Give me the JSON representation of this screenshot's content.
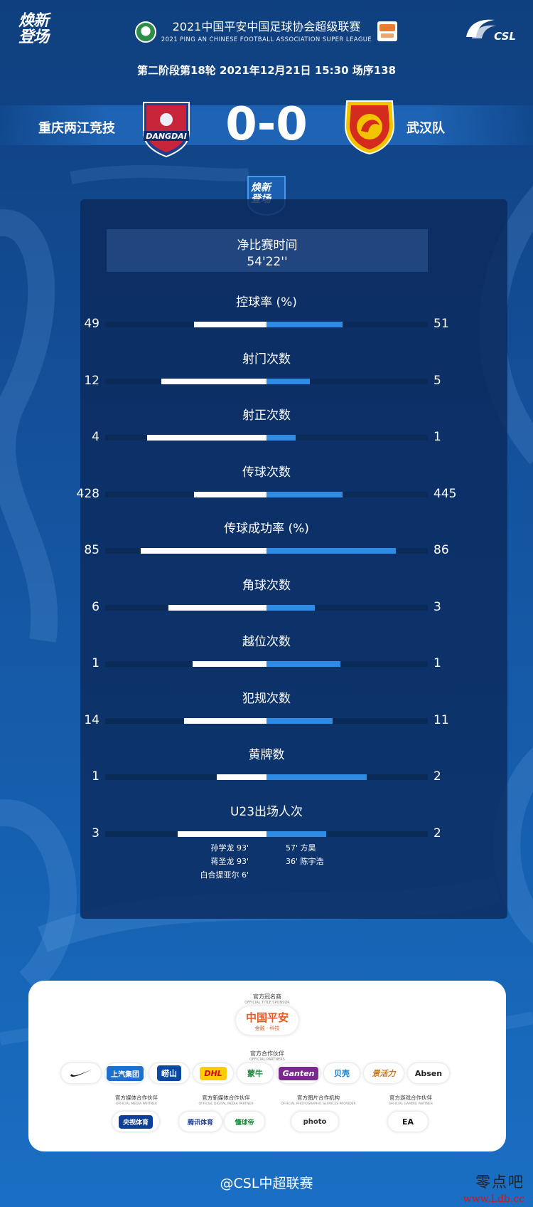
{
  "header": {
    "brand_line1": "焕新",
    "brand_line2": "登场",
    "league_title_cn": "2021中国平安中国足球协会超级联赛",
    "league_title_en": "2021 PING AN CHINESE FOOTBALL ASSOCIATION SUPER LEAGUE",
    "csl_logo_text": "CSL"
  },
  "match": {
    "round_info": "第二阶段第18轮  2021年12月21日 15:30 场序138",
    "home_team": "重庆两江竞技",
    "away_team": "武汉队",
    "score": "0-0",
    "home_crest_text": "DANGDAI",
    "center_badge_line1": "焕新",
    "center_badge_line2": "登场"
  },
  "net_time": {
    "label": "净比赛时间",
    "value": "54'22''"
  },
  "stats": [
    {
      "label": "控球率 (%)",
      "home": "49",
      "away": "51",
      "home_num": 49,
      "away_num": 51
    },
    {
      "label": "射门次数",
      "home": "12",
      "away": "5",
      "home_num": 12,
      "away_num": 5
    },
    {
      "label": "射正次数",
      "home": "4",
      "away": "1",
      "home_num": 4,
      "away_num": 1
    },
    {
      "label": "传球次数",
      "home": "428",
      "away": "445",
      "home_num": 428,
      "away_num": 445
    },
    {
      "label": "传球成功率 (%)",
      "home": "85",
      "away": "86",
      "home_num": 85,
      "away_num": 86
    },
    {
      "label": "角球次数",
      "home": "6",
      "away": "3",
      "home_num": 6,
      "away_num": 3
    },
    {
      "label": "越位次数",
      "home": "1",
      "away": "1",
      "home_num": 1,
      "away_num": 1
    },
    {
      "label": "犯规次数",
      "home": "14",
      "away": "11",
      "home_num": 14,
      "away_num": 11
    },
    {
      "label": "黄牌数",
      "home": "1",
      "away": "2",
      "home_num": 1,
      "away_num": 2
    },
    {
      "label": "U23出场人次",
      "home": "3",
      "away": "2",
      "home_num": 3,
      "away_num": 2
    }
  ],
  "stat_bar_fill": [
    {
      "home": 0.45,
      "away": 0.47
    },
    {
      "home": 0.65,
      "away": 0.27
    },
    {
      "home": 0.74,
      "away": 0.18
    },
    {
      "home": 0.45,
      "away": 0.47
    },
    {
      "home": 0.78,
      "away": 0.8
    },
    {
      "home": 0.61,
      "away": 0.3
    },
    {
      "home": 0.46,
      "away": 0.46
    },
    {
      "home": 0.51,
      "away": 0.41
    },
    {
      "home": 0.31,
      "away": 0.62
    },
    {
      "home": 0.55,
      "away": 0.37
    }
  ],
  "u23_players": {
    "home": [
      "孙学龙  93'",
      "蒋圣龙  93'",
      "白合提亚尔  6'"
    ],
    "away": [
      "57'  方昊",
      "36'  陈宇浩"
    ]
  },
  "sponsors": {
    "title_sponsor_head": "官方冠名商",
    "title_sponsor_sub": "OFFICIAL TITLE SPONSOR",
    "title_sponsor_name": "中国平安",
    "title_sponsor_tag": "金融 · 科技",
    "partners_head": "官方合作伙伴",
    "partners_sub": "OFFICIAL PARTNERS",
    "partners": [
      "NIKE",
      "上汽集团",
      "崂山",
      "DHL",
      "蒙牛",
      "Ganten",
      "贝壳",
      "景活力",
      "Absen"
    ],
    "media_head": "官方媒体合作伙伴",
    "media_sub": "OFFICIAL MEDIA PARTNER",
    "media_name": "央视体育",
    "newmedia_head": "官方新媒体合作伙伴",
    "newmedia_sub": "OFFICIAL DIGITAL MEDIA PARTNER",
    "newmedia_names": [
      "腾讯体育",
      "懂球帝"
    ],
    "photo_head": "官方图片合作机构",
    "photo_sub": "OFFICIAL PHOTOGRAPHIC SERVICES PROVIDER",
    "photo_name": "photo",
    "game_head": "官方游戏合作伙伴",
    "game_sub": "OFFICIAL GAMING PARTNER",
    "game_name": "EA"
  },
  "footer": {
    "weibo": "@CSL中超联赛",
    "watermark_zh": "零点吧",
    "watermark_url": "www.Ldb.cc"
  },
  "colors": {
    "home_bar": "#ffffff",
    "away_bar": "#2f8ce4",
    "panel": "#0c2d62",
    "background": "#1660b0"
  }
}
